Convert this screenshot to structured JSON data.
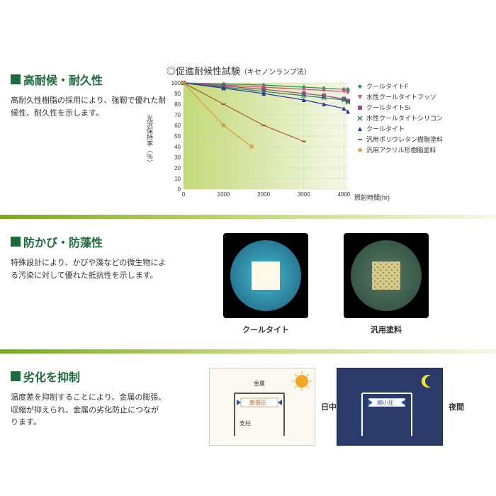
{
  "section1": {
    "title": "高耐候・耐久性",
    "desc": "高耐久性樹脂の採用により、強靭で優れた耐候性、耐久性を示します。"
  },
  "chart": {
    "type": "line",
    "title": "◎促進耐候性試験",
    "subtitle": "（キセノンランプ法）",
    "ylabel": "光沢保持率（％）",
    "xlabel": "照射時間(hr)",
    "xlim": [
      0,
      4100
    ],
    "ylim": [
      0,
      100
    ],
    "xticks": [
      0,
      1000,
      2000,
      3000,
      4000
    ],
    "yticks": [
      0,
      10,
      20,
      30,
      40,
      50,
      60,
      70,
      80,
      90,
      100
    ],
    "background_color": "#f5f8e8",
    "background_gradient": "#c3d977",
    "grid_color": "#d0d8b0",
    "series": [
      {
        "label": "クールタイトF",
        "color": "#1fa048",
        "marker": "diamond",
        "data": [
          [
            0,
            100
          ],
          [
            1000,
            99
          ],
          [
            2000,
            98
          ],
          [
            3000,
            96
          ],
          [
            3500,
            95
          ],
          [
            4000,
            94
          ],
          [
            4100,
            94
          ]
        ]
      },
      {
        "label": "水性クールタイトフッソ",
        "color": "#d14a8a",
        "marker": "triangle-down",
        "data": [
          [
            0,
            100
          ],
          [
            1000,
            98
          ],
          [
            2000,
            96
          ],
          [
            3000,
            94
          ],
          [
            3500,
            93
          ],
          [
            4000,
            92
          ],
          [
            4100,
            91
          ]
        ]
      },
      {
        "label": "クールタイトSi",
        "color": "#a04a7a",
        "marker": "square",
        "data": [
          [
            0,
            100
          ],
          [
            1000,
            97
          ],
          [
            2000,
            94
          ],
          [
            3000,
            90
          ],
          [
            3500,
            88
          ],
          [
            4000,
            85
          ],
          [
            4100,
            83
          ]
        ]
      },
      {
        "label": "水性クールタイトシリコン",
        "color": "#2a7a6a",
        "marker": "x",
        "data": [
          [
            0,
            100
          ],
          [
            1000,
            96
          ],
          [
            2000,
            92
          ],
          [
            3000,
            88
          ],
          [
            3500,
            86
          ],
          [
            4000,
            84
          ],
          [
            4100,
            82
          ]
        ]
      },
      {
        "label": "クールタイト",
        "color": "#2a3a9a",
        "marker": "triangle-up",
        "data": [
          [
            0,
            100
          ],
          [
            1000,
            95
          ],
          [
            2000,
            90
          ],
          [
            3000,
            84
          ],
          [
            3500,
            80
          ],
          [
            4000,
            76
          ],
          [
            4100,
            73
          ]
        ]
      },
      {
        "label": "汎用ポリウレタン樹脂塗料",
        "color": "#a85a2a",
        "marker": "dash",
        "data": [
          [
            0,
            100
          ],
          [
            1000,
            80
          ],
          [
            2000,
            60
          ],
          [
            3000,
            45
          ]
        ]
      },
      {
        "label": "汎用アクリル形樹脂塗料",
        "color": "#d89a3a",
        "marker": "star",
        "data": [
          [
            0,
            100
          ],
          [
            1000,
            60
          ],
          [
            1700,
            40
          ]
        ]
      }
    ]
  },
  "section2": {
    "title": "防かび・防藻性",
    "desc": "特殊設計により、かびや藻などの微生物による汚染に対して優れた抵抗性を示します。",
    "label_left": "クールタイト",
    "label_right": "汎用塗料"
  },
  "section3": {
    "title": "劣化を抑制",
    "desc": "温度差を抑制することにより、金属の膨張、収縮が抑えられ、金属の劣化防止につながります。",
    "day_label": "日中",
    "night_label": "夜間",
    "top_label": "金属",
    "expand_label": "膨張圧",
    "shrink_label": "縮小圧",
    "post_label": "支柱"
  }
}
